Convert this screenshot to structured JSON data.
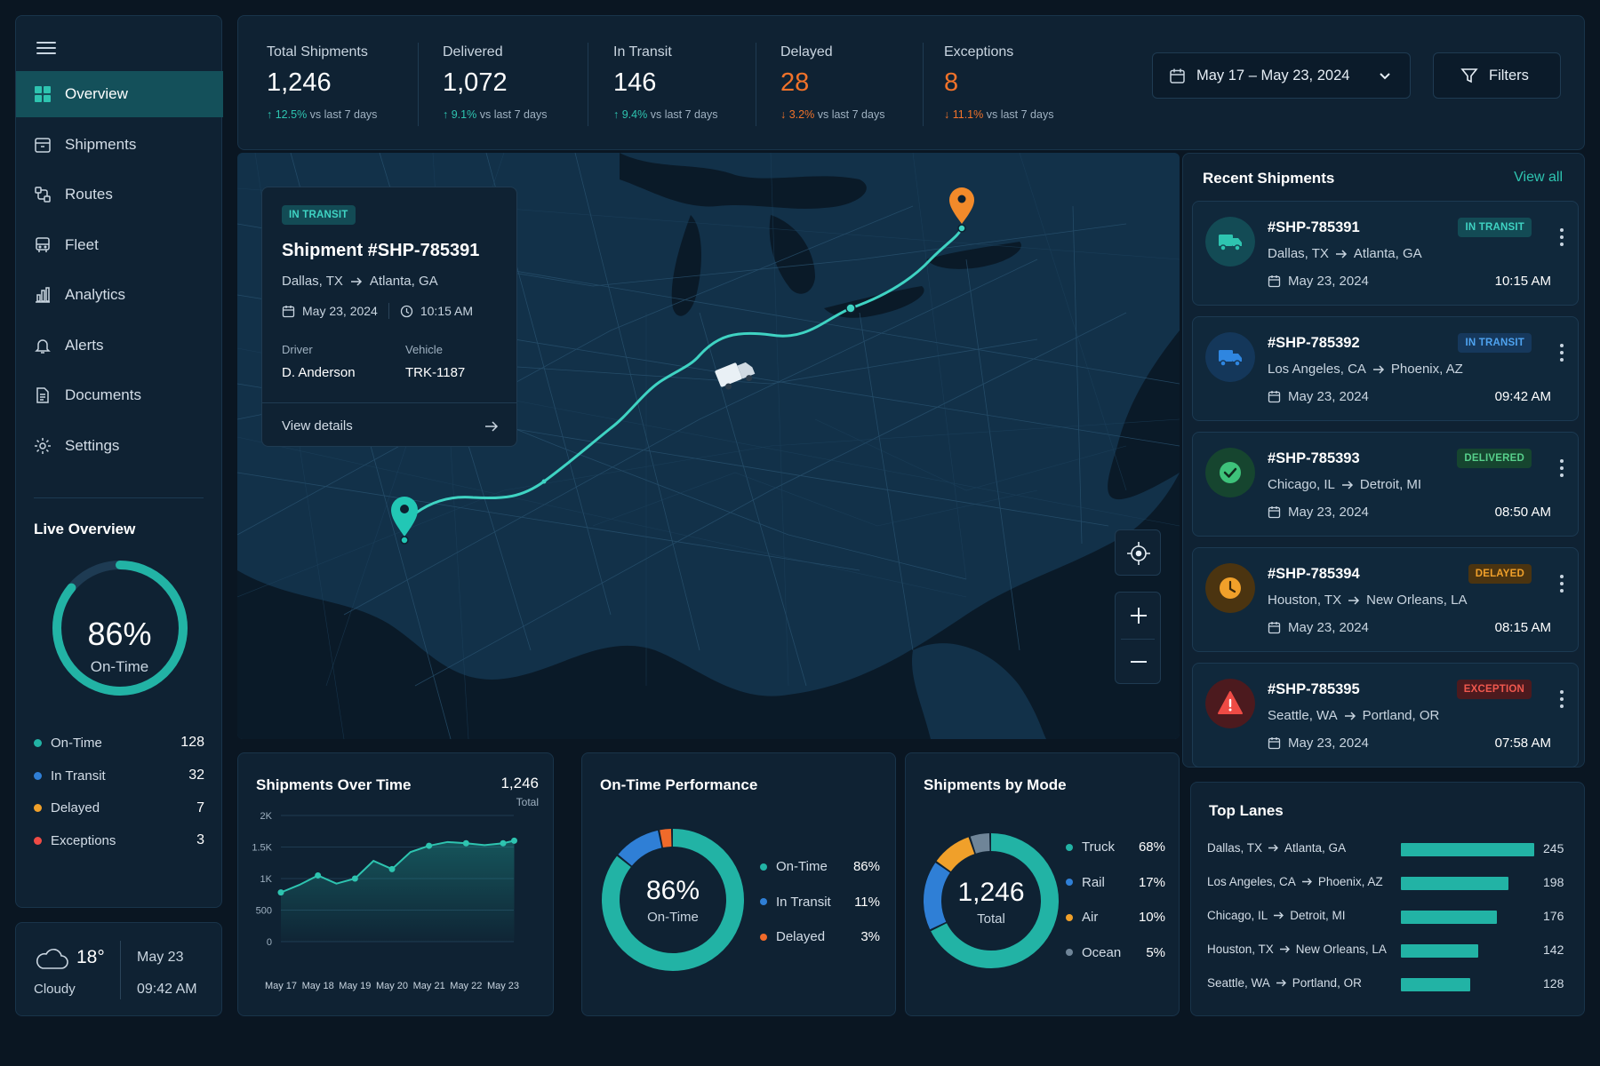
{
  "sidebar": {
    "menu_icon": "hamburger-icon",
    "items": [
      {
        "label": "Overview",
        "icon": "grid-icon",
        "active": true
      },
      {
        "label": "Shipments",
        "icon": "box-icon"
      },
      {
        "label": "Routes",
        "icon": "route-icon"
      },
      {
        "label": "Fleet",
        "icon": "bus-icon"
      },
      {
        "label": "Analytics",
        "icon": "bar-chart-icon"
      },
      {
        "label": "Alerts",
        "icon": "bell-icon"
      },
      {
        "label": "Documents",
        "icon": "document-icon"
      },
      {
        "label": "Settings",
        "icon": "gear-icon"
      }
    ],
    "live": {
      "title": "Live Overview",
      "percent_label": "86%",
      "percent": 0.86,
      "label": "On-Time",
      "rows": [
        {
          "label": "On-Time",
          "value": "128",
          "color": "#22b3a5"
        },
        {
          "label": "In Transit",
          "value": "32",
          "color": "#2f7fd6"
        },
        {
          "label": "Delayed",
          "value": "7",
          "color": "#f0a02a"
        },
        {
          "label": "Exceptions",
          "value": "3",
          "color": "#ef4b45"
        }
      ]
    }
  },
  "weather": {
    "temp": "18°",
    "condition": "Cloudy",
    "date": "May 23",
    "time": "09:42 AM",
    "icon": "cloud-icon"
  },
  "kpis": [
    {
      "label": "Total Shipments",
      "value": "1,246",
      "change": "12.5%",
      "dir": "up",
      "suffix": "vs last 7 days"
    },
    {
      "label": "Delivered",
      "value": "1,072",
      "change": "9.1%",
      "dir": "up",
      "suffix": "vs last 7 days"
    },
    {
      "label": "In Transit",
      "value": "146",
      "change": "9.4%",
      "dir": "up",
      "suffix": "vs last 7 days"
    },
    {
      "label": "Delayed",
      "value": "28",
      "change": "3.2%",
      "dir": "down",
      "suffix": "vs last 7 days",
      "warn": true
    },
    {
      "label": "Exceptions",
      "value": "8",
      "change": "11.1%",
      "dir": "down",
      "suffix": "vs last 7 days",
      "warn": true
    }
  ],
  "date_range": "May 17 – May 23, 2024",
  "filters_label": "Filters",
  "map_card": {
    "badge": "IN TRANSIT",
    "title": "Shipment #SHP-785391",
    "from": "Dallas, TX",
    "to": "Atlanta, GA",
    "date": "May 23, 2024",
    "time": "10:15 AM",
    "driver_label": "Driver",
    "driver": "D. Anderson",
    "vehicle_label": "Vehicle",
    "vehicle": "TRK-1187",
    "link": "View details"
  },
  "recent": {
    "title": "Recent Shipments",
    "view_all": "View all",
    "items": [
      {
        "id": "#SHP-785391",
        "from": "Dallas, TX",
        "to": "Atlanta, GA",
        "date": "May 23, 2024",
        "time": "10:15 AM",
        "status": "IN TRANSIT",
        "kind": "transit",
        "icon": "truck-icon"
      },
      {
        "id": "#SHP-785392",
        "from": "Los Angeles, CA",
        "to": "Phoenix, AZ",
        "date": "May 23, 2024",
        "time": "09:42 AM",
        "status": "IN TRANSIT",
        "kind": "transit-blue",
        "icon": "truck-icon"
      },
      {
        "id": "#SHP-785393",
        "from": "Chicago, IL",
        "to": "Detroit, MI",
        "date": "May 23, 2024",
        "time": "08:50 AM",
        "status": "DELIVERED",
        "kind": "delivered",
        "icon": "check-circle-icon"
      },
      {
        "id": "#SHP-785394",
        "from": "Houston, TX",
        "to": "New Orleans, LA",
        "date": "May 23, 2024",
        "time": "08:15 AM",
        "status": "DELAYED",
        "kind": "delayed",
        "icon": "clock-icon"
      },
      {
        "id": "#SHP-785395",
        "from": "Seattle, WA",
        "to": "Portland, OR",
        "date": "May 23, 2024",
        "time": "07:58 AM",
        "status": "EXCEPTION",
        "kind": "exception",
        "icon": "warning-icon"
      }
    ]
  },
  "sot": {
    "title": "Shipments Over Time",
    "total": "1,246",
    "total_label": "Total"
  },
  "otp": {
    "title": "On-Time Performance",
    "center": "86%",
    "center_label": "On-Time",
    "rows": [
      {
        "label": "On-Time",
        "value": "86%",
        "color": "#22b3a5"
      },
      {
        "label": "In Transit",
        "value": "11%",
        "color": "#2f7fd6"
      },
      {
        "label": "Delayed",
        "value": "3%",
        "color": "#f06a2a"
      }
    ]
  },
  "sbm": {
    "title": "Shipments by Mode",
    "center": "1,246",
    "center_label": "Total",
    "rows": [
      {
        "label": "Truck",
        "value": "68%",
        "color": "#22b3a5"
      },
      {
        "label": "Rail",
        "value": "17%",
        "color": "#2f7fd6"
      },
      {
        "label": "Air",
        "value": "10%",
        "color": "#f0a02a"
      },
      {
        "label": "Ocean",
        "value": "5%",
        "color": "#6f8598"
      }
    ]
  },
  "lanes": {
    "title": "Top Lanes",
    "items": [
      {
        "from": "Dallas, TX",
        "to": "Atlanta, GA",
        "value": "245"
      },
      {
        "from": "Los Angeles, CA",
        "to": "Phoenix, AZ",
        "value": "198"
      },
      {
        "from": "Chicago, IL",
        "to": "Detroit, MI",
        "value": "176"
      },
      {
        "from": "Houston, TX",
        "to": "New Orleans, LA",
        "value": "142"
      },
      {
        "from": "Seattle, WA",
        "to": "Portland, OR",
        "value": "128"
      }
    ]
  },
  "chart_data": [
    {
      "type": "area",
      "title": "Shipments Over Time",
      "categories": [
        "May 17",
        "May 18",
        "May 19",
        "May 20",
        "May 21",
        "May 22",
        "May 23"
      ],
      "x": [
        0,
        0.5,
        1,
        1.5,
        2,
        2.5,
        3,
        3.5,
        4,
        4.5,
        5,
        5.5,
        6,
        6.3
      ],
      "y": [
        780,
        900,
        1050,
        920,
        1000,
        1280,
        1150,
        1420,
        1520,
        1580,
        1560,
        1530,
        1560,
        1600
      ],
      "yticks": [
        "0",
        "500",
        "1K",
        "1.5K",
        "2K"
      ],
      "ylim": [
        0,
        2000
      ],
      "grid": true
    },
    {
      "type": "pie",
      "title": "On-Time Performance",
      "labels": [
        "On-Time",
        "In Transit",
        "Delayed"
      ],
      "values": [
        86,
        11,
        3
      ]
    },
    {
      "type": "pie",
      "title": "Shipments by Mode",
      "labels": [
        "Truck",
        "Rail",
        "Air",
        "Ocean"
      ],
      "values": [
        68,
        17,
        10,
        5
      ]
    },
    {
      "type": "bar",
      "title": "Top Lanes",
      "categories": [
        "Dallas, TX → Atlanta, GA",
        "Los Angeles, CA → Phoenix, AZ",
        "Chicago, IL → Detroit, MI",
        "Houston, TX → New Orleans, LA",
        "Seattle, WA → Portland, OR"
      ],
      "values": [
        245,
        198,
        176,
        142,
        128
      ]
    }
  ]
}
